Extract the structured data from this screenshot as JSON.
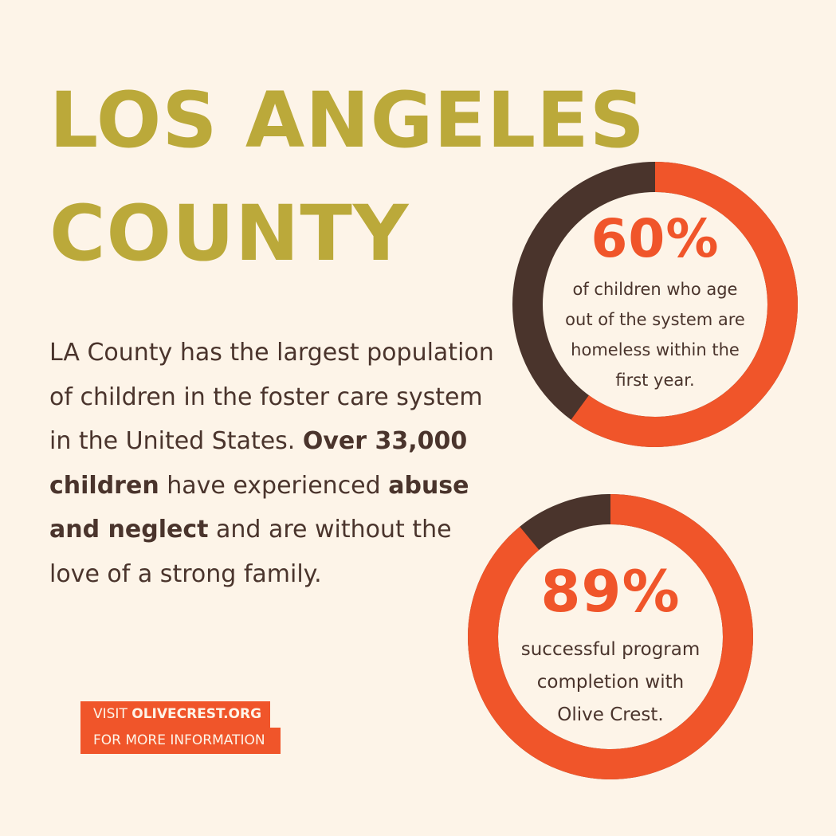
{
  "title": {
    "line1": "LOS ANGELES",
    "line2": "COUNTY"
  },
  "body": {
    "part1": "LA County has the largest population of children in the foster care system in the United States. ",
    "bold1": "Over 33,000 children",
    "part2": " have experienced ",
    "bold2": "abuse and neglect",
    "part3": " and are without the love of a strong family."
  },
  "cta": {
    "visit_label": "VISIT ",
    "site": "OLIVECREST.ORG",
    "more_info": "FOR MORE INFORMATION"
  },
  "stats": [
    {
      "percent_label": "60%",
      "percent_value": 0.6,
      "description": "of children who age\nout of the system are\nhomeless within the\nfirst year."
    },
    {
      "percent_label": "89%",
      "percent_value": 0.89,
      "description": "successful program\ncompletion with\nOlive Crest."
    }
  ],
  "colors": {
    "background": "#fdf4e8",
    "title": "#bba93a",
    "accent": "#f0552a",
    "dark": "#4a342c"
  }
}
